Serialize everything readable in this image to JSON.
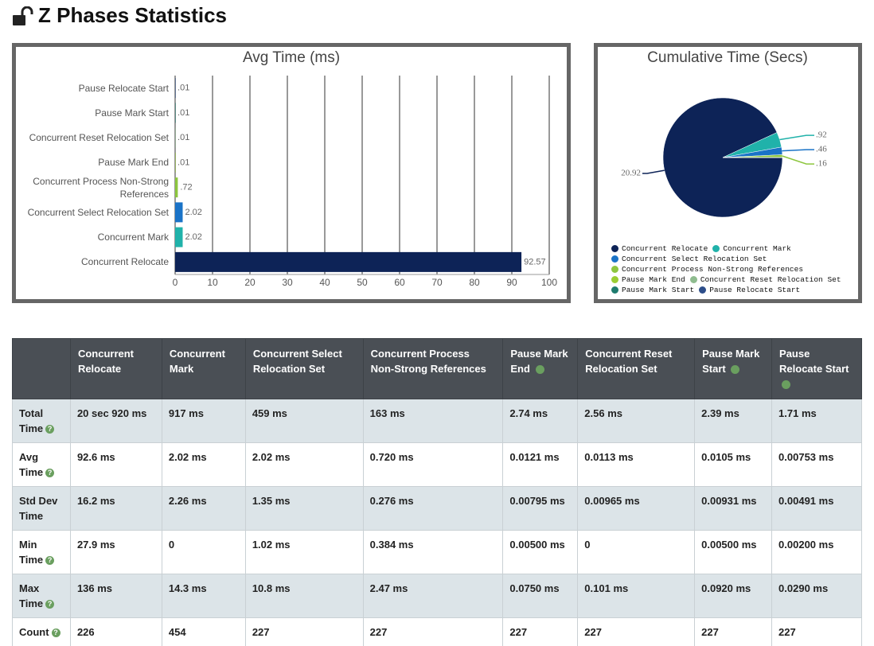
{
  "header": {
    "title": "Z Phases Statistics"
  },
  "chart_data": [
    {
      "type": "bar",
      "title": "Avg Time (ms)",
      "categories": [
        "Pause Relocate Start",
        "Pause Mark Start",
        "Concurrent Reset Relocation Set",
        "Pause Mark End",
        "Concurrent Process Non-Strong References",
        "Concurrent Select Relocation Set",
        "Concurrent Mark",
        "Concurrent Relocate"
      ],
      "values": [
        0.01,
        0.01,
        0.01,
        0.01,
        0.72,
        2.02,
        2.02,
        92.57
      ],
      "value_labels": [
        ".01",
        ".01",
        ".01",
        ".01",
        ".72",
        "2.02",
        "2.02",
        "92.57"
      ],
      "colors": [
        "#2d4e8a",
        "#1e7b6e",
        "#8fbc8f",
        "#9acd32",
        "#8dc63f",
        "#1a73c7",
        "#20b2aa",
        "#0d2357"
      ],
      "xlim": [
        0,
        100
      ],
      "xticks": [
        0,
        10,
        20,
        30,
        40,
        50,
        60,
        70,
        80,
        90,
        100
      ],
      "grid": true
    },
    {
      "type": "pie",
      "title": "Cumulative Time (Secs)",
      "categories": [
        "Concurrent Relocate",
        "Concurrent Mark",
        "Concurrent Select Relocation Set",
        "Concurrent Process Non-Strong References",
        "Pause Mark End",
        "Concurrent Reset Relocation Set",
        "Pause Mark Start",
        "Pause Relocate Start"
      ],
      "values": [
        20.92,
        0.92,
        0.46,
        0.16,
        0.003,
        0.003,
        0.002,
        0.002
      ],
      "value_labels": [
        "20.92",
        ".92",
        ".46",
        ".16",
        null,
        null,
        null,
        null
      ],
      "colors": [
        "#0d2357",
        "#20b2aa",
        "#1a73c7",
        "#8dc63f",
        "#9acd32",
        "#8fbc8f",
        "#1e7b6e",
        "#2d4e8a"
      ]
    }
  ],
  "table": {
    "columns": [
      "Concurrent Relocate",
      "Concurrent Mark",
      "Concurrent Select Relocation Set",
      "Concurrent Process Non-Strong References",
      "Pause Mark End",
      "Concurrent Reset Relocation Set",
      "Pause Mark Start",
      "Pause Relocate Start"
    ],
    "rows": [
      {
        "label": "Total Time",
        "cells": [
          "20 sec 920 ms",
          "917 ms",
          "459 ms",
          "163 ms",
          "2.74 ms",
          "2.56 ms",
          "2.39 ms",
          "1.71 ms"
        ]
      },
      {
        "label": "Avg Time",
        "cells": [
          "92.6 ms",
          "2.02 ms",
          "2.02 ms",
          "0.720 ms",
          "0.0121 ms",
          "0.0113 ms",
          "0.0105 ms",
          "0.00753 ms"
        ]
      },
      {
        "label": "Std Dev Time",
        "cells": [
          "16.2 ms",
          "2.26 ms",
          "1.35 ms",
          "0.276 ms",
          "0.00795 ms",
          "0.00965 ms",
          "0.00931 ms",
          "0.00491 ms"
        ]
      },
      {
        "label": "Min Time",
        "cells": [
          "27.9 ms",
          "0",
          "1.02 ms",
          "0.384 ms",
          "0.00500 ms",
          "0",
          "0.00500 ms",
          "0.00200 ms"
        ]
      },
      {
        "label": "Max Time",
        "cells": [
          "136 ms",
          "14.3 ms",
          "10.8 ms",
          "2.47 ms",
          "0.0750 ms",
          "0.101 ms",
          "0.0920 ms",
          "0.0290 ms"
        ]
      },
      {
        "label": "Count",
        "cells": [
          "226",
          "454",
          "227",
          "227",
          "227",
          "227",
          "227",
          "227"
        ]
      }
    ]
  }
}
